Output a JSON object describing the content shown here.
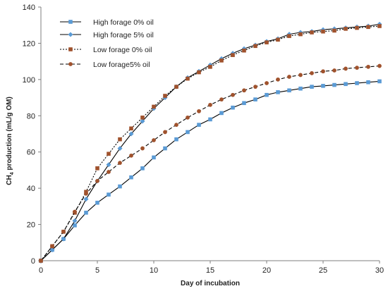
{
  "chart_data": {
    "type": "line",
    "xlabel": "Day of incubation",
    "ylabel_main": "CH",
    "ylabel_sub": "4",
    "ylabel_rest": " production (mL/g OM)",
    "xlim": [
      0,
      30
    ],
    "ylim": [
      0,
      140
    ],
    "xticks": [
      0,
      5,
      10,
      15,
      20,
      25,
      30
    ],
    "yticks": [
      0,
      20,
      40,
      60,
      80,
      100,
      120,
      140
    ],
    "grid": false,
    "legend_position": "top-left",
    "series": [
      {
        "name": "High forage 0% oil",
        "color": "#5b9bd5",
        "line_color": "#000000",
        "line_style": "solid",
        "marker": "square",
        "x": [
          0,
          1,
          2,
          3,
          4,
          5,
          6,
          7,
          8,
          9,
          10,
          11,
          12,
          13,
          14,
          15,
          16,
          17,
          18,
          19,
          20,
          21,
          22,
          23,
          24,
          25,
          26,
          27,
          28,
          29,
          30
        ],
        "values": [
          0,
          6,
          12,
          19.5,
          26.5,
          32,
          36.5,
          41,
          46,
          51,
          57,
          62,
          67,
          71,
          75,
          78,
          81.5,
          84.5,
          87,
          89,
          91.5,
          93,
          94,
          95,
          96,
          96.5,
          97,
          97.5,
          98,
          98.5,
          99
        ]
      },
      {
        "name": "High forage 5% oil",
        "color": "#5b9bd5",
        "line_color": "#000000",
        "line_style": "solid",
        "marker": "diamond",
        "x": [
          0,
          1,
          2,
          3,
          4,
          5,
          6,
          7,
          8,
          9,
          10,
          11,
          12,
          13,
          14,
          15,
          16,
          17,
          18,
          19,
          20,
          21,
          22,
          23,
          24,
          25,
          26,
          27,
          28,
          29,
          30
        ],
        "values": [
          0,
          6,
          12,
          22,
          34,
          44,
          53,
          62,
          70,
          77,
          84,
          90,
          96,
          101,
          104.5,
          108,
          111.5,
          114.5,
          117,
          119,
          121,
          122.5,
          125,
          126,
          126.5,
          127.5,
          128,
          128.5,
          129,
          129.5,
          130.5
        ]
      },
      {
        "name": "Low forage 0% oil",
        "color": "#a0522d",
        "line_color": "#000000",
        "line_style": "dotted",
        "marker": "square",
        "x": [
          0,
          1,
          2,
          3,
          4,
          5,
          6,
          7,
          8,
          9,
          10,
          11,
          12,
          13,
          14,
          15,
          16,
          17,
          18,
          19,
          20,
          21,
          22,
          23,
          24,
          25,
          26,
          27,
          28,
          29,
          30
        ],
        "values": [
          0,
          8,
          16,
          26.5,
          38,
          51,
          59,
          67,
          73,
          79,
          85,
          91,
          96,
          100.5,
          104,
          107,
          110.5,
          113.5,
          116,
          118.5,
          120.5,
          122,
          124,
          125,
          126,
          126.5,
          127,
          128,
          128.5,
          129,
          129.5
        ]
      },
      {
        "name": "Low forage5% oil",
        "color": "#a0522d",
        "line_color": "#000000",
        "line_style": "dashed",
        "marker": "circle",
        "x": [
          0,
          1,
          2,
          3,
          4,
          5,
          6,
          7,
          8,
          9,
          10,
          11,
          12,
          13,
          14,
          15,
          16,
          17,
          18,
          19,
          20,
          21,
          22,
          23,
          24,
          25,
          26,
          27,
          28,
          29,
          30
        ],
        "values": [
          0,
          8,
          16,
          27,
          37,
          44,
          49,
          54,
          58,
          62,
          66.5,
          71,
          75,
          79,
          82.5,
          86,
          89,
          91.5,
          94,
          96,
          98,
          100,
          101.5,
          102.5,
          103.5,
          104.5,
          105,
          106,
          106.5,
          107,
          107.5
        ]
      }
    ]
  }
}
